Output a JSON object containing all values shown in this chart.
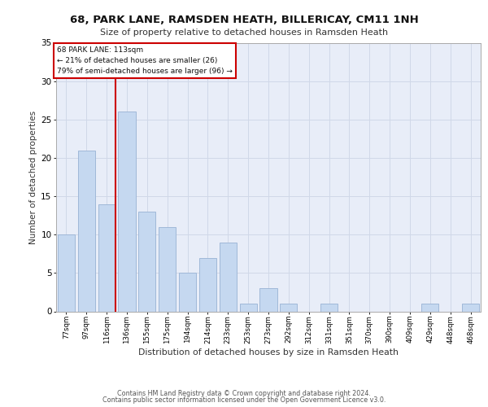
{
  "title1": "68, PARK LANE, RAMSDEN HEATH, BILLERICAY, CM11 1NH",
  "title2": "Size of property relative to detached houses in Ramsden Heath",
  "xlabel": "Distribution of detached houses by size in Ramsden Heath",
  "ylabel": "Number of detached properties",
  "categories": [
    "77sqm",
    "97sqm",
    "116sqm",
    "136sqm",
    "155sqm",
    "175sqm",
    "194sqm",
    "214sqm",
    "233sqm",
    "253sqm",
    "273sqm",
    "292sqm",
    "312sqm",
    "331sqm",
    "351sqm",
    "370sqm",
    "390sqm",
    "409sqm",
    "429sqm",
    "448sqm",
    "468sqm"
  ],
  "values": [
    10,
    21,
    14,
    26,
    13,
    11,
    5,
    7,
    9,
    1,
    3,
    1,
    0,
    1,
    0,
    0,
    0,
    0,
    1,
    0,
    1
  ],
  "bar_color": "#c5d8f0",
  "bar_edge_color": "#a0b8d8",
  "vline_x_index": 2,
  "vline_color": "#cc0000",
  "annotation_text": "68 PARK LANE: 113sqm\n← 21% of detached houses are smaller (26)\n79% of semi-detached houses are larger (96) →",
  "annotation_box_color": "#ffffff",
  "annotation_box_edge": "#cc0000",
  "ylim": [
    0,
    35
  ],
  "yticks": [
    0,
    5,
    10,
    15,
    20,
    25,
    30,
    35
  ],
  "grid_color": "#d0d8e8",
  "bg_color": "#e8edf8",
  "footer1": "Contains HM Land Registry data © Crown copyright and database right 2024.",
  "footer2": "Contains public sector information licensed under the Open Government Licence v3.0."
}
